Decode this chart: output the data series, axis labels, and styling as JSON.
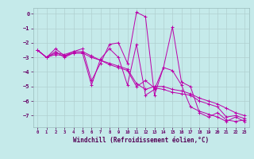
{
  "title": "",
  "xlabel": "Windchill (Refroidissement éolien,°C)",
  "ylabel": "",
  "background_color": "#c5eaea",
  "grid_color": "#b0d0d0",
  "line_color": "#bb00aa",
  "xlim": [
    -0.5,
    23.5
  ],
  "ylim": [
    -7.8,
    0.4
  ],
  "xticks": [
    0,
    1,
    2,
    3,
    4,
    5,
    6,
    7,
    8,
    9,
    10,
    11,
    12,
    13,
    14,
    15,
    16,
    17,
    18,
    19,
    20,
    21,
    22,
    23
  ],
  "yticks": [
    0,
    -1,
    -2,
    -3,
    -4,
    -5,
    -6,
    -7
  ],
  "series": [
    {
      "x": [
        0,
        1,
        2,
        3,
        4,
        5,
        6,
        7,
        8,
        9,
        10,
        11,
        12,
        13,
        14,
        15,
        16,
        17,
        18,
        19,
        20,
        21,
        22,
        23
      ],
      "y": [
        -2.5,
        -3.0,
        -2.4,
        -2.9,
        -2.6,
        -2.4,
        -4.6,
        -3.4,
        -2.1,
        -2.0,
        -3.4,
        0.1,
        -0.2,
        -5.6,
        -3.7,
        -0.9,
        -4.7,
        -5.0,
        -6.8,
        -7.1,
        -6.8,
        -7.3,
        -7.4,
        -7.3
      ]
    },
    {
      "x": [
        0,
        1,
        2,
        3,
        4,
        5,
        6,
        7,
        8,
        9,
        10,
        11,
        12,
        13,
        14,
        15,
        16,
        17,
        18,
        19,
        20,
        21,
        22,
        23
      ],
      "y": [
        -2.5,
        -3.0,
        -2.7,
        -2.8,
        -2.6,
        -2.6,
        -2.9,
        -3.2,
        -3.4,
        -3.6,
        -3.8,
        -4.8,
        -5.2,
        -5.0,
        -5.0,
        -5.2,
        -5.3,
        -5.5,
        -5.8,
        -6.0,
        -6.2,
        -6.5,
        -6.8,
        -7.0
      ]
    },
    {
      "x": [
        0,
        1,
        2,
        3,
        4,
        5,
        6,
        7,
        8,
        9,
        10,
        11,
        12,
        13,
        14,
        15,
        16,
        17,
        18,
        19,
        20,
        21,
        22,
        23
      ],
      "y": [
        -2.5,
        -3.0,
        -2.8,
        -2.9,
        -2.7,
        -2.7,
        -3.0,
        -3.2,
        -3.5,
        -3.7,
        -3.9,
        -5.0,
        -4.6,
        -5.1,
        -5.2,
        -5.4,
        -5.5,
        -5.6,
        -6.0,
        -6.2,
        -6.4,
        -7.1,
        -7.0,
        -7.2
      ]
    },
    {
      "x": [
        0,
        1,
        2,
        3,
        4,
        5,
        6,
        7,
        8,
        9,
        10,
        11,
        12,
        13,
        14,
        15,
        16,
        17,
        18,
        19,
        20,
        21,
        22,
        23
      ],
      "y": [
        -2.5,
        -3.0,
        -2.6,
        -3.0,
        -2.7,
        -2.7,
        -4.9,
        -3.1,
        -2.4,
        -3.0,
        -4.9,
        -2.1,
        -5.6,
        -5.2,
        -3.7,
        -3.9,
        -4.9,
        -6.4,
        -6.7,
        -6.9,
        -7.1,
        -7.4,
        -7.1,
        -7.4
      ]
    }
  ]
}
